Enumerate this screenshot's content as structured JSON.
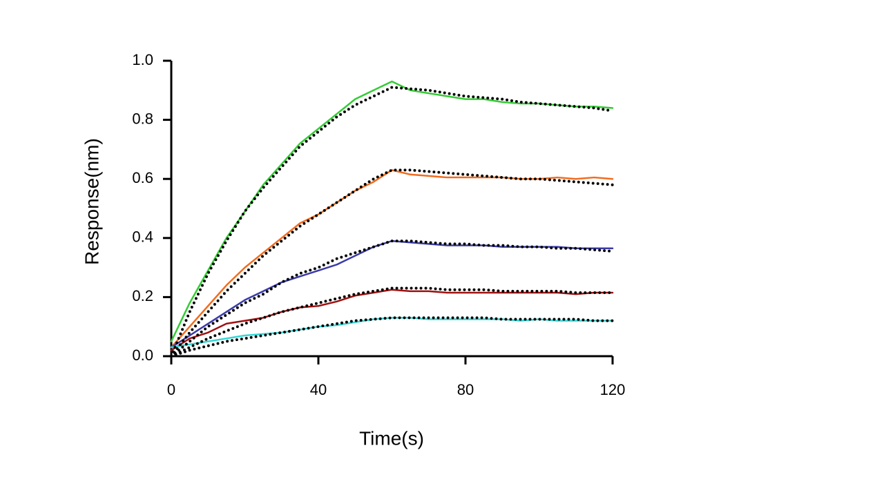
{
  "chart_data": {
    "type": "line",
    "xlabel": "Time(s)",
    "ylabel": "Response(nm)",
    "xlim": [
      0,
      120
    ],
    "xticks": [
      0,
      40,
      80,
      120
    ],
    "ylim": [
      0,
      1
    ],
    "yticks": [
      {
        "value": 0,
        "label": "0.0"
      },
      0.2,
      0.4,
      0.6,
      0.8,
      {
        "value": 1,
        "label": "1.0"
      }
    ],
    "grid": false,
    "x": [
      0,
      5,
      10,
      15,
      20,
      25,
      30,
      35,
      40,
      45,
      50,
      55,
      60,
      65,
      70,
      75,
      80,
      85,
      90,
      95,
      100,
      105,
      110,
      115,
      120
    ],
    "series": [
      {
        "color": "#33cc33",
        "style": "solid",
        "values": [
          0.05,
          0.18,
          0.29,
          0.4,
          0.49,
          0.58,
          0.65,
          0.72,
          0.77,
          0.82,
          0.87,
          0.9,
          0.93,
          0.9,
          0.89,
          0.88,
          0.87,
          0.87,
          0.86,
          0.855,
          0.855,
          0.85,
          0.845,
          0.845,
          0.84
        ]
      },
      {
        "color": "#f26b1d",
        "style": "solid",
        "values": [
          0.03,
          0.1,
          0.17,
          0.24,
          0.3,
          0.35,
          0.4,
          0.45,
          0.48,
          0.52,
          0.56,
          0.59,
          0.63,
          0.615,
          0.61,
          0.605,
          0.605,
          0.605,
          0.605,
          0.6,
          0.6,
          0.605,
          0.6,
          0.605,
          0.6
        ]
      },
      {
        "color": "#3a3aa8",
        "style": "solid",
        "values": [
          0.03,
          0.07,
          0.11,
          0.15,
          0.19,
          0.22,
          0.25,
          0.27,
          0.29,
          0.31,
          0.34,
          0.37,
          0.39,
          0.385,
          0.38,
          0.375,
          0.375,
          0.375,
          0.37,
          0.37,
          0.37,
          0.37,
          0.365,
          0.365,
          0.365
        ]
      },
      {
        "color": "#a01010",
        "style": "solid",
        "values": [
          0.02,
          0.06,
          0.08,
          0.11,
          0.12,
          0.13,
          0.15,
          0.165,
          0.17,
          0.185,
          0.205,
          0.215,
          0.225,
          0.22,
          0.22,
          0.215,
          0.215,
          0.215,
          0.215,
          0.215,
          0.215,
          0.215,
          0.21,
          0.215,
          0.215
        ]
      },
      {
        "color": "#33d6d6",
        "style": "solid",
        "values": [
          0.03,
          0.04,
          0.05,
          0.06,
          0.07,
          0.075,
          0.08,
          0.09,
          0.1,
          0.105,
          0.115,
          0.125,
          0.13,
          0.13,
          0.125,
          0.125,
          0.125,
          0.125,
          0.125,
          0.12,
          0.125,
          0.12,
          0.12,
          0.12,
          0.12
        ]
      },
      {
        "color": "#000000",
        "style": "dotted",
        "values": [
          0,
          0.15,
          0.28,
          0.39,
          0.49,
          0.57,
          0.64,
          0.71,
          0.76,
          0.81,
          0.85,
          0.88,
          0.91,
          0.905,
          0.9,
          0.89,
          0.88,
          0.875,
          0.87,
          0.86,
          0.855,
          0.85,
          0.845,
          0.84,
          0.83
        ]
      },
      {
        "color": "#000000",
        "style": "dotted",
        "values": [
          0,
          0.08,
          0.15,
          0.22,
          0.28,
          0.34,
          0.39,
          0.44,
          0.48,
          0.52,
          0.56,
          0.6,
          0.63,
          0.63,
          0.625,
          0.62,
          0.615,
          0.61,
          0.605,
          0.6,
          0.6,
          0.595,
          0.59,
          0.585,
          0.58
        ]
      },
      {
        "color": "#000000",
        "style": "dotted",
        "values": [
          0,
          0.05,
          0.1,
          0.14,
          0.18,
          0.21,
          0.25,
          0.28,
          0.3,
          0.33,
          0.35,
          0.37,
          0.39,
          0.39,
          0.385,
          0.38,
          0.38,
          0.375,
          0.375,
          0.37,
          0.37,
          0.365,
          0.365,
          0.36,
          0.355
        ]
      },
      {
        "color": "#000000",
        "style": "dotted",
        "values": [
          0,
          0.03,
          0.06,
          0.085,
          0.11,
          0.13,
          0.15,
          0.165,
          0.18,
          0.195,
          0.21,
          0.22,
          0.23,
          0.23,
          0.23,
          0.225,
          0.225,
          0.225,
          0.22,
          0.22,
          0.22,
          0.22,
          0.215,
          0.215,
          0.215
        ]
      },
      {
        "color": "#000000",
        "style": "dotted",
        "values": [
          0,
          0.02,
          0.035,
          0.05,
          0.06,
          0.07,
          0.08,
          0.09,
          0.1,
          0.11,
          0.12,
          0.125,
          0.13,
          0.13,
          0.13,
          0.13,
          0.13,
          0.13,
          0.125,
          0.125,
          0.125,
          0.125,
          0.125,
          0.12,
          0.12
        ]
      }
    ]
  }
}
